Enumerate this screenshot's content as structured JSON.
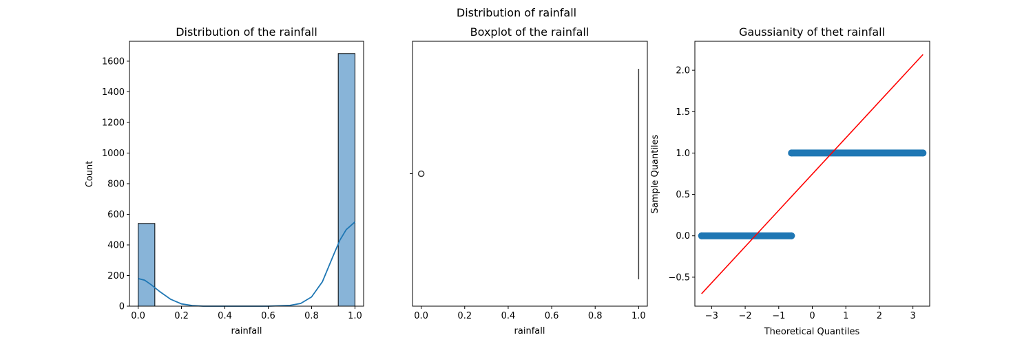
{
  "figure": {
    "suptitle": "Distribution of rainfall"
  },
  "colors": {
    "bar_fill": "#88b4d8",
    "bar_edge": "#000000",
    "kde": "#1f77b4",
    "qq_points": "#1f77b4",
    "qq_line": "#ff0000",
    "box_line": "#3a3a3a"
  },
  "chart_data": [
    {
      "type": "bar",
      "title": "Distribution of the rainfall",
      "xlabel": "rainfall",
      "ylabel": "Count",
      "xlim": [
        -0.04,
        1.04
      ],
      "ylim": [
        0,
        1730
      ],
      "xticks": [
        0.0,
        0.2,
        0.4,
        0.6,
        0.8,
        1.0
      ],
      "xtick_labels": [
        "0.0",
        "0.2",
        "0.4",
        "0.6",
        "0.8",
        "1.0"
      ],
      "yticks": [
        0,
        200,
        400,
        600,
        800,
        1000,
        1200,
        1400,
        1600
      ],
      "ytick_labels": [
        "0",
        "200",
        "400",
        "600",
        "800",
        "1000",
        "1200",
        "1400",
        "1600"
      ],
      "bins": [
        {
          "x0": 0.0,
          "x1": 0.077,
          "count": 540
        },
        {
          "x0": 0.923,
          "x1": 1.0,
          "count": 1650
        }
      ],
      "kde": {
        "x": [
          0.0,
          0.03,
          0.06,
          0.1,
          0.15,
          0.2,
          0.25,
          0.3,
          0.4,
          0.5,
          0.6,
          0.7,
          0.75,
          0.8,
          0.85,
          0.9,
          0.93,
          0.96,
          1.0
        ],
        "y": [
          180,
          170,
          140,
          95,
          45,
          15,
          4,
          0,
          0,
          0,
          0,
          5,
          18,
          60,
          160,
          330,
          430,
          500,
          550
        ]
      },
      "grid": false
    },
    {
      "type": "box",
      "title": "Boxplot of the rainfall",
      "xlabel": "rainfall",
      "xlim": [
        -0.04,
        1.04
      ],
      "xticks": [
        0.0,
        0.2,
        0.4,
        0.6,
        0.8,
        1.0
      ],
      "xtick_labels": [
        "0.0",
        "0.2",
        "0.4",
        "0.6",
        "0.8",
        "1.0"
      ],
      "box": {
        "q1": 1.0,
        "median": 1.0,
        "q3": 1.0,
        "whisker_low": 1.0,
        "whisker_high": 1.0
      },
      "outliers": [
        0.0
      ],
      "grid": false
    },
    {
      "type": "scatter",
      "title": "Gaussianity of thet  rainfall",
      "xlabel": "Theoretical Quantiles",
      "ylabel": "Sample Quantiles",
      "xlim": [
        -3.5,
        3.5
      ],
      "ylim": [
        -0.85,
        2.35
      ],
      "xticks": [
        -3,
        -2,
        -1,
        0,
        1,
        2,
        3
      ],
      "xtick_labels": [
        "−3",
        "−2",
        "−1",
        "0",
        "1",
        "2",
        "3"
      ],
      "yticks": [
        -0.5,
        0.0,
        0.5,
        1.0,
        1.5,
        2.0
      ],
      "ytick_labels": [
        "−0.5",
        "0.0",
        "0.5",
        "1.0",
        "1.5",
        "2.0"
      ],
      "points_low": {
        "y": 0.0,
        "x_start": -3.3,
        "x_end": -0.62
      },
      "points_high": {
        "y": 1.0,
        "x_start": -0.62,
        "x_end": 3.3
      },
      "reference_line": {
        "x": [
          -3.3,
          3.3
        ],
        "y": [
          -0.7,
          2.19
        ]
      },
      "grid": false
    }
  ]
}
